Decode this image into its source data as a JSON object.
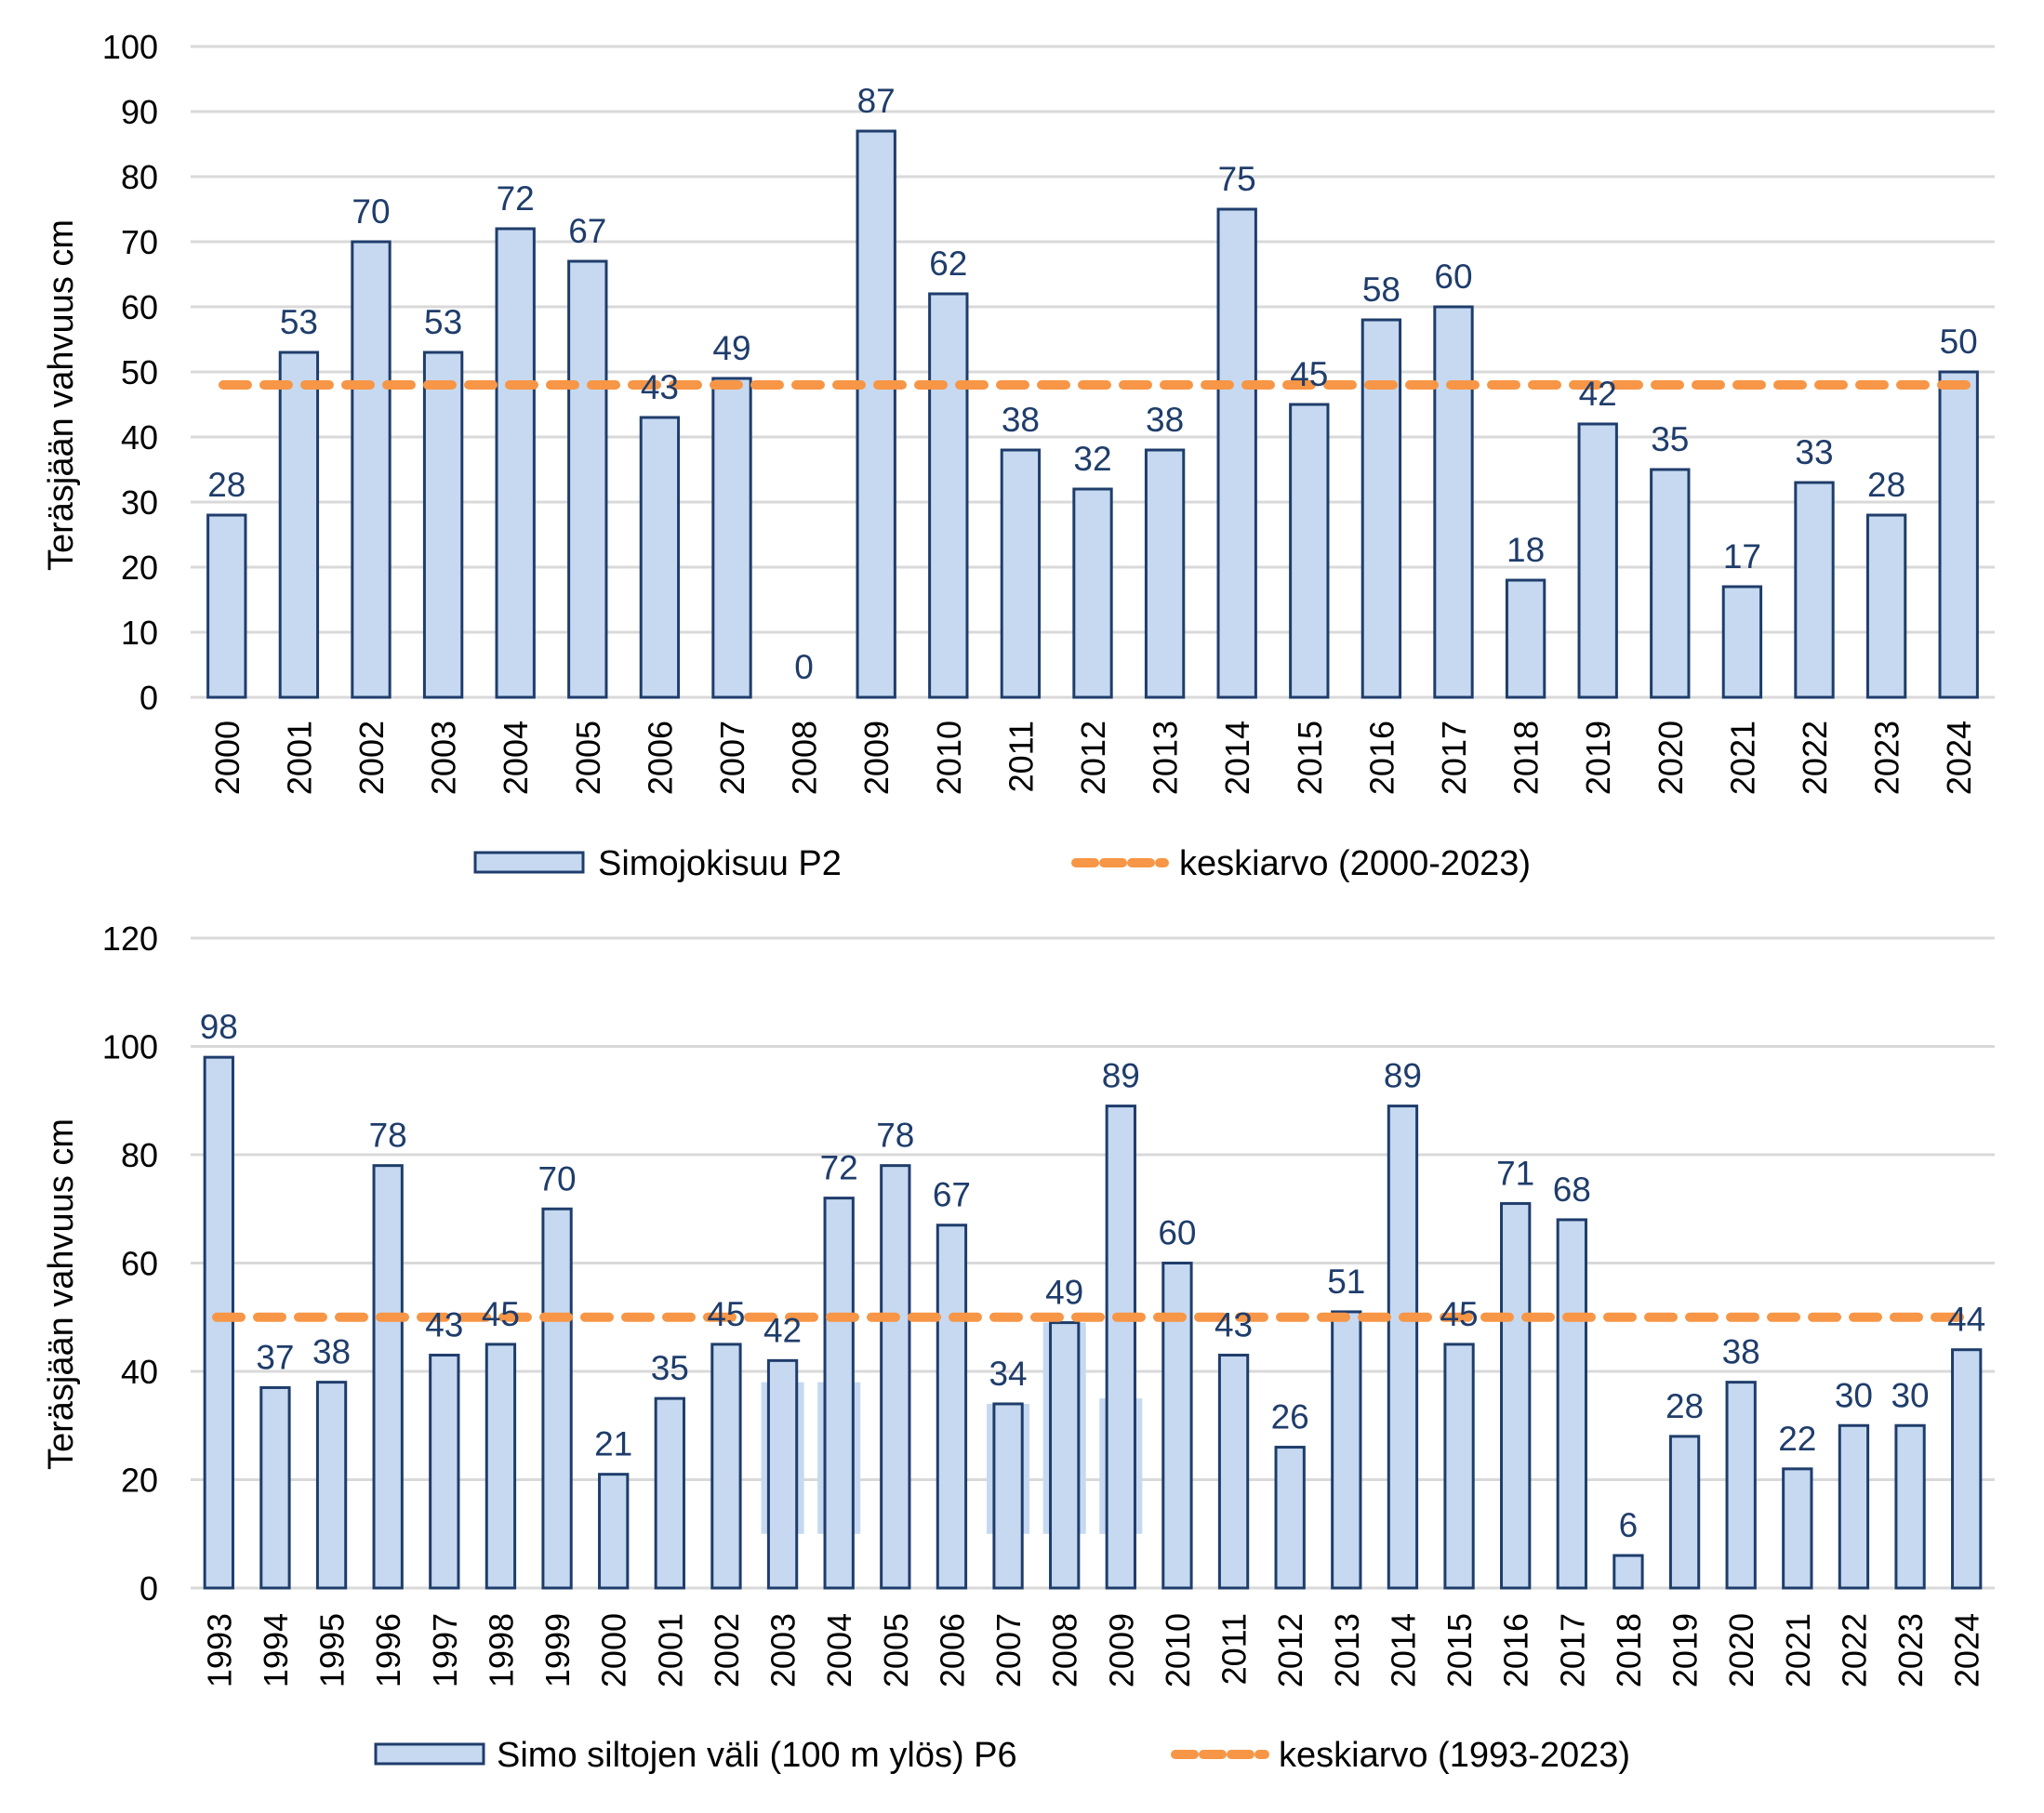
{
  "colors": {
    "bar_fill": "#c6d9f1",
    "bar_stroke": "#1f3d6b",
    "data_label": "#1f3d6b",
    "average_line": "#f79646",
    "gridline": "#d9d9d9"
  },
  "chart_data": [
    {
      "type": "bar",
      "title": "",
      "xlabel": "",
      "ylabel": "Teräsjään vahvuus cm",
      "ylim": [
        0,
        100
      ],
      "yticks": [
        0,
        10,
        20,
        30,
        40,
        50,
        60,
        70,
        80,
        90,
        100
      ],
      "ytick_labels": [
        "0",
        "10",
        "20",
        "30",
        "40",
        "50",
        "60",
        "70",
        "80",
        "90",
        "100"
      ],
      "grid": true,
      "legend_position": "bottom",
      "categories": [
        "2000",
        "2001",
        "2002",
        "2003",
        "2004",
        "2005",
        "2006",
        "2007",
        "2008",
        "2009",
        "2010",
        "2011",
        "2012",
        "2013",
        "2014",
        "2015",
        "2016",
        "2017",
        "2018",
        "2019",
        "2020",
        "2021",
        "2022",
        "2023",
        "2024"
      ],
      "series": [
        {
          "name": "Simojokisuu P2",
          "kind": "bar",
          "values": [
            28,
            53,
            70,
            53,
            72,
            67,
            43,
            49,
            0,
            87,
            62,
            38,
            32,
            38,
            75,
            45,
            58,
            60,
            18,
            42,
            35,
            17,
            33,
            28,
            50
          ],
          "data_labels": [
            "28",
            "53",
            "70",
            "53",
            "72",
            "67",
            "43",
            "49",
            "0",
            "87",
            "62",
            "38",
            "32",
            "38",
            "75",
            "45",
            "58",
            "60",
            "18",
            "42",
            "35",
            "17",
            "33",
            "28",
            "50"
          ]
        },
        {
          "name": "keskiarvo (2000-2023)",
          "kind": "line-dashed",
          "value": 48
        }
      ]
    },
    {
      "type": "bar",
      "title": "",
      "xlabel": "",
      "ylabel": "Teräsjään vahvuus cm",
      "ylim": [
        0,
        120
      ],
      "yticks": [
        0,
        20,
        40,
        60,
        80,
        100,
        120
      ],
      "ytick_labels": [
        "0",
        "20",
        "40",
        "60",
        "80",
        "100",
        "120"
      ],
      "grid": true,
      "legend_position": "bottom",
      "categories": [
        "1993",
        "1994",
        "1995",
        "1996",
        "1997",
        "1998",
        "1999",
        "2000",
        "2001",
        "2002",
        "2003",
        "2004",
        "2005",
        "2006",
        "2007",
        "2008",
        "2009",
        "2010",
        "2011",
        "2012",
        "2013",
        "2014",
        "2015",
        "2016",
        "2017",
        "2018",
        "2019",
        "2020",
        "2021",
        "2022",
        "2023",
        "2024"
      ],
      "series": [
        {
          "name": "Simo siltojen väli (100 m ylös) P6",
          "kind": "bar",
          "values": [
            98,
            37,
            38,
            78,
            43,
            45,
            70,
            21,
            35,
            45,
            42,
            72,
            78,
            67,
            34,
            49,
            89,
            60,
            43,
            26,
            51,
            89,
            45,
            71,
            68,
            6,
            28,
            38,
            22,
            30,
            30,
            44
          ],
          "data_labels": [
            "98",
            "37",
            "38",
            "78",
            "43",
            "45",
            "70",
            "21",
            "35",
            "45",
            "42",
            "72",
            "78",
            "67",
            "34",
            "49",
            "89",
            "60",
            "43",
            "26",
            "51",
            "89",
            "45",
            "71",
            "68",
            "6",
            "28",
            "38",
            "22",
            "30",
            "30",
            "44"
          ]
        },
        {
          "name": "keskiarvo (1993-2023)",
          "kind": "line-dashed",
          "value": 50
        }
      ]
    }
  ]
}
